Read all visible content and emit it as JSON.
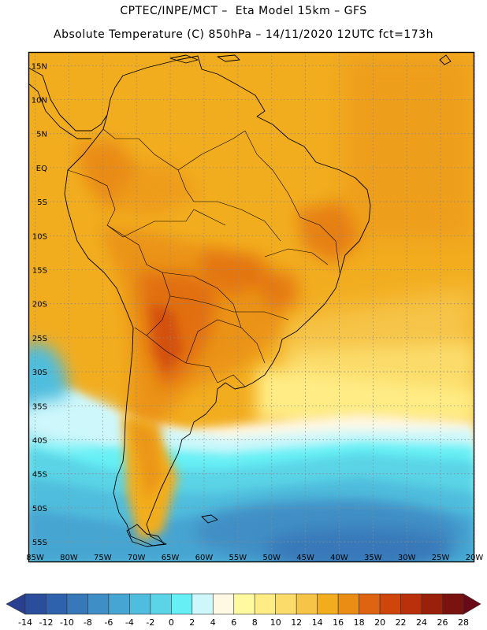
{
  "header": {
    "line1": "CPTEC/INPE/MCT –  Eta Model 15km – GFS",
    "line2": "Absolute Temperature (C) 850hPa – 14/11/2020 12UTC fct=173h"
  },
  "map": {
    "lon_labels": [
      "85W",
      "80W",
      "75W",
      "70W",
      "65W",
      "60W",
      "55W",
      "50W",
      "45W",
      "40W",
      "35W",
      "30W",
      "25W",
      "20W"
    ],
    "lat_labels": [
      "15N",
      "10N",
      "5N",
      "EQ",
      "5S",
      "10S",
      "15S",
      "20S",
      "25S",
      "30S",
      "35S",
      "40S",
      "45S",
      "50S",
      "55S"
    ],
    "lon_range": [
      -86,
      -20
    ],
    "lat_range": [
      -58,
      17
    ]
  },
  "legend": {
    "ticks": [
      "-14",
      "-12",
      "-10",
      "-8",
      "-6",
      "-4",
      "-2",
      "0",
      "2",
      "4",
      "6",
      "8",
      "10",
      "12",
      "14",
      "16",
      "18",
      "20",
      "22",
      "24",
      "26",
      "28"
    ],
    "colors": [
      "#2a3f8f",
      "#2b4e9c",
      "#2f62ac",
      "#3778b9",
      "#3f8ec5",
      "#46a5d2",
      "#4fbddd",
      "#5ad4e6",
      "#66f0f5",
      "#cdf7fb",
      "#fff8e3",
      "#fffaa0",
      "#ffec84",
      "#fbdc6a",
      "#f6c548",
      "#f2ad1f",
      "#e98d14",
      "#df6411",
      "#cf460c",
      "#ba300a",
      "#9a200a",
      "#7a1210",
      "#6a0a18"
    ]
  }
}
